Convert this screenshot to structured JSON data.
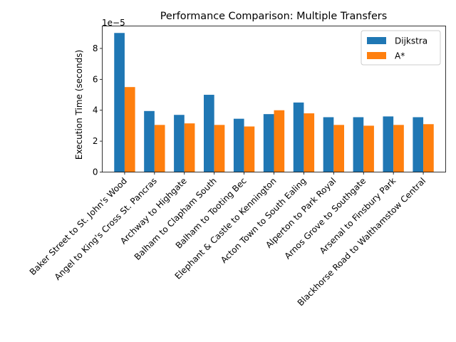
{
  "chart_data": {
    "type": "bar",
    "title": "Performance Comparison: Multiple Transfers",
    "xlabel": "",
    "ylabel": "Execution Time (seconds)",
    "y_scale_label": "1e−5",
    "ylim": [
      0,
      9.45
    ],
    "yticks": [
      0,
      2,
      4,
      6,
      8
    ],
    "y_multiplier": 1e-05,
    "grid": false,
    "legend_position": "top-right",
    "categories": [
      "Baker Street to St. John's Wood",
      "Angel to King's Cross St. Pancras",
      "Archway to Highgate",
      "Balham to Clapham South",
      "Balham to Tooting Bec",
      "Elephant & Castle to Kennington",
      "Acton Town to South Ealing",
      "Alperton to Park Royal",
      "Arnos Grove to Southgate",
      "Arsenal to Finsbury Park",
      "Blackhorse Road to Walthamstow Central"
    ],
    "series": [
      {
        "name": "Dijkstra",
        "color": "#1f77b4",
        "values": [
          9.0,
          3.95,
          3.7,
          5.0,
          3.45,
          3.75,
          4.5,
          3.55,
          3.55,
          3.6,
          3.55
        ]
      },
      {
        "name": "A*",
        "color": "#ff7f0e",
        "values": [
          5.5,
          3.05,
          3.15,
          3.05,
          2.95,
          4.0,
          3.8,
          3.05,
          3.0,
          3.05,
          3.1
        ]
      }
    ]
  }
}
